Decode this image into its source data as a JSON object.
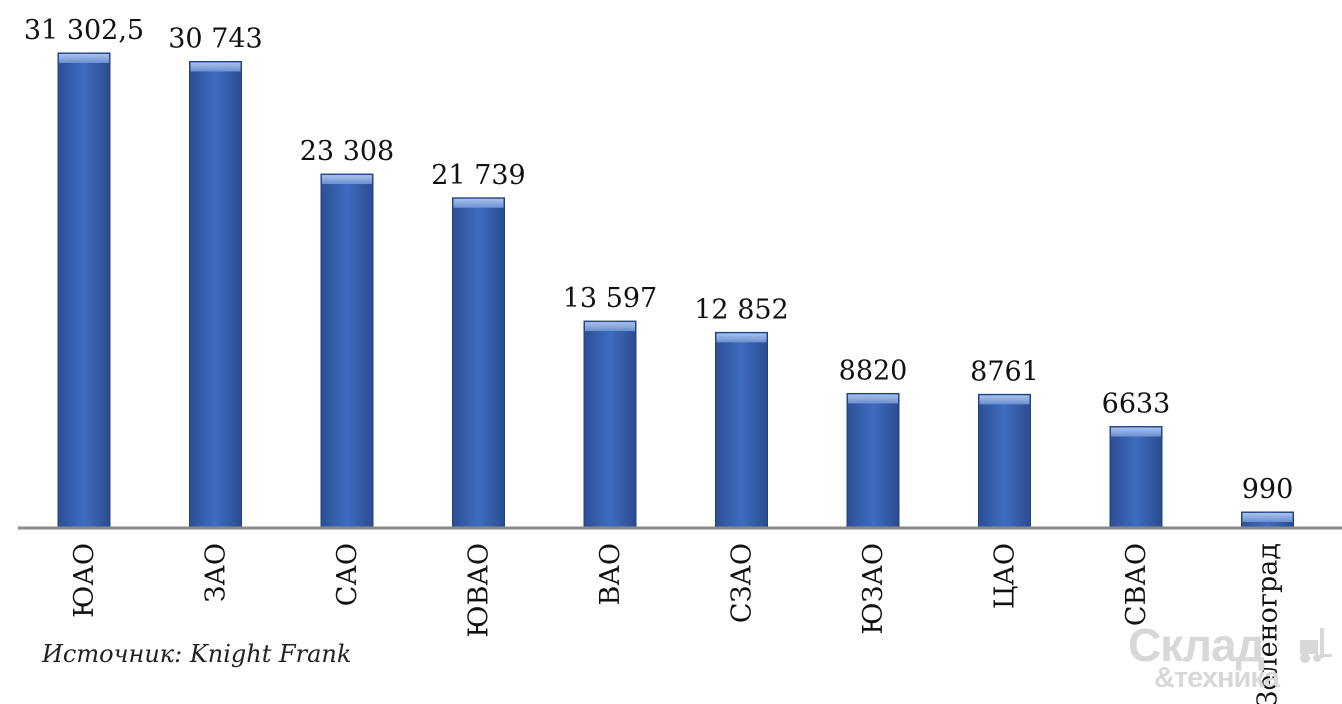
{
  "chart_data": {
    "type": "bar",
    "categories": [
      "ЮАО",
      "ЗАО",
      "САО",
      "ЮВАО",
      "ВАО",
      "СЗАО",
      "ЮЗАО",
      "ЦАО",
      "СВАО",
      "Зеленоград"
    ],
    "values": [
      31302.5,
      30743,
      23308,
      21739,
      13597,
      12852,
      8820,
      8761,
      6633,
      990
    ],
    "value_labels": [
      "31 302,5",
      "30 743",
      "23 308",
      "21 739",
      "13 597",
      "12 852",
      "8820",
      "8761",
      "6633",
      "990"
    ],
    "title": "",
    "xlabel": "",
    "ylabel": "",
    "ylim": [
      0,
      31302.5
    ],
    "grid": false,
    "legend": "none",
    "bar_color": "#3a63b0",
    "bar_top_color": "#7fa3de"
  },
  "source": "Источник: Knight Frank",
  "logo": {
    "line1": "Склад",
    "line2": "&техника",
    "color": "#d8d8d8"
  }
}
